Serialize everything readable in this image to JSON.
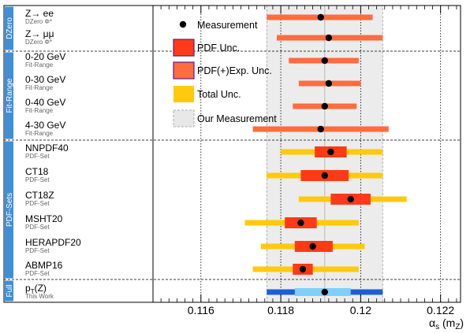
{
  "chart_data": {
    "type": "scatter",
    "orientation": "horizontal-forest",
    "title": "",
    "xlabel_main": "α",
    "xlabel_sub": "s",
    "xlabel_suffix": " (m",
    "xlabel_suffix_sub": "Z",
    "xlabel_close": ")",
    "xlim": [
      0.1148,
      0.1225
    ],
    "xticks": [
      0.116,
      0.118,
      0.12,
      0.122
    ],
    "xtick_labels": [
      "0.116",
      "0.118",
      "0.12",
      "0.122"
    ],
    "grid": "vertical dotted at major ticks",
    "our_measurement": {
      "center": 0.1191,
      "band": [
        0.11765,
        0.12055
      ]
    },
    "groups": [
      {
        "name": "DZero",
        "color": "#3d8fd9",
        "rows": [
          0,
          1
        ]
      },
      {
        "name": "Fit-Range",
        "color": "#3d8fd9",
        "rows": [
          2,
          3,
          4,
          5
        ]
      },
      {
        "name": "PDF-Sets",
        "color": "#3d8fd9",
        "rows": [
          6,
          7,
          8,
          9,
          10,
          11
        ]
      },
      {
        "name": "Full",
        "color": "#3d8fd9",
        "rows": [
          12
        ]
      }
    ],
    "rows": [
      {
        "label": "Z→ ee",
        "sublabel": "DZero Φ*",
        "value": 0.119,
        "pdfexp": [
          0.11765,
          0.1203
        ]
      },
      {
        "label": "Z→ μμ",
        "sublabel": "DZero Φ*",
        "value": 0.1192,
        "pdfexp": [
          0.1179,
          0.12055
        ]
      },
      {
        "label": "0-20 GeV",
        "sublabel": "Fit-Range",
        "value": 0.1191,
        "pdfexp": [
          0.1182,
          0.11995
        ]
      },
      {
        "label": "0-30 GeV",
        "sublabel": "Fit-Range",
        "value": 0.1192,
        "pdfexp": [
          0.11845,
          0.12
        ]
      },
      {
        "label": "0-40 GeV",
        "sublabel": "Fit-Range",
        "value": 0.1191,
        "pdfexp": [
          0.1183,
          0.1199
        ]
      },
      {
        "label": "4-30 GeV",
        "sublabel": "Fit-Range",
        "value": 0.119,
        "pdfexp": [
          0.1173,
          0.1207
        ]
      },
      {
        "label": "NNPDF40",
        "sublabel": "PDF-Set",
        "value": 0.11925,
        "pdf": [
          0.11885,
          0.11965
        ],
        "total": [
          0.118,
          0.12055
        ]
      },
      {
        "label": "CT18",
        "sublabel": "PDF-Set",
        "value": 0.1191,
        "pdf": [
          0.1185,
          0.1197
        ],
        "total": [
          0.11765,
          0.12055
        ]
      },
      {
        "label": "CT18Z",
        "sublabel": "PDF-Set",
        "value": 0.11975,
        "pdf": [
          0.11925,
          0.12025
        ],
        "total": [
          0.11845,
          0.12115
        ]
      },
      {
        "label": "MSHT20",
        "sublabel": "PDF-Set",
        "value": 0.1185,
        "pdf": [
          0.1181,
          0.1189
        ],
        "total": [
          0.1171,
          0.11995
        ]
      },
      {
        "label": "HERAPDF20",
        "sublabel": "PDF-Set",
        "value": 0.1188,
        "pdf": [
          0.11835,
          0.1193
        ],
        "total": [
          0.1175,
          0.1201
        ]
      },
      {
        "label": "ABMP16",
        "sublabel": "PDF-Set",
        "value": 0.11855,
        "pdf": [
          0.1183,
          0.1188
        ],
        "total": [
          0.1173,
          0.11995
        ]
      },
      {
        "label": "p",
        "label_sub": "T",
        "label_rest": "(Z)",
        "sublabel": "This Work",
        "value": 0.1191,
        "inner": [
          0.11835,
          0.11975
        ],
        "outer": [
          0.11765,
          0.12055
        ]
      }
    ],
    "legend": {
      "placement": "top-left inside plot",
      "entries": [
        {
          "key": "measurement",
          "label": "Measurement"
        },
        {
          "key": "pdf",
          "label": "PDF Unc.",
          "color": "#ff3a16"
        },
        {
          "key": "pdfexp",
          "label": "PDF(+)Exp. Unc.",
          "color": "#ff6c3e"
        },
        {
          "key": "total",
          "label": "Total Unc.",
          "color": "#ffc90d"
        },
        {
          "key": "ours",
          "label": "Our Measurement",
          "color": "#e8e8e8"
        }
      ]
    },
    "colors": {
      "pdf": "#ff3a16",
      "pdfexp": "#ff6c3e",
      "total": "#ffc90d",
      "ours_band": "#ececec",
      "ours_line": "#b8b8b8",
      "full_inner": "#7fd0f8",
      "full_outer": "#1b5fd8",
      "group_bar": "#3d8fd9",
      "marker": "#000000"
    }
  }
}
